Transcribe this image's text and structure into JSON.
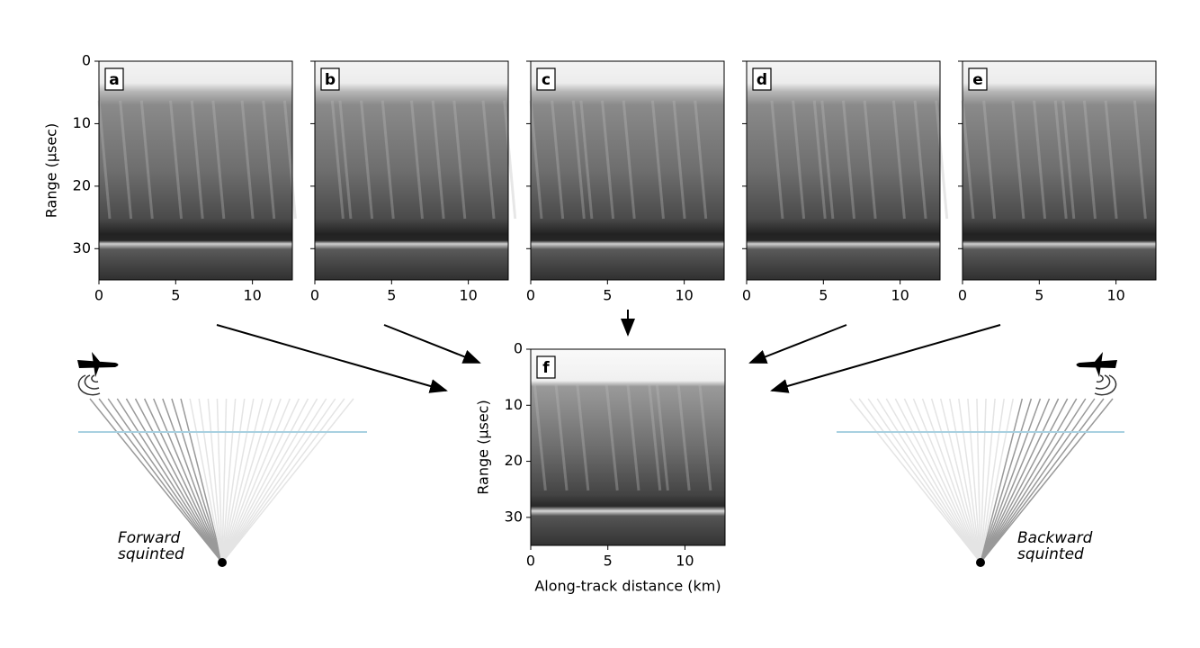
{
  "panels": [
    {
      "label": "a",
      "xlim": [
        0,
        12.6
      ],
      "ylim": [
        35,
        0
      ],
      "xticks": [
        0,
        5,
        10
      ],
      "yticks": [
        0,
        10,
        20,
        30
      ],
      "yticklabels": true,
      "ylabel": "Range (μsec)"
    },
    {
      "label": "b",
      "xlim": [
        0,
        12.6
      ],
      "ylim": [
        35,
        0
      ],
      "xticks": [
        0,
        5,
        10
      ],
      "yticks": [
        0,
        10,
        20,
        30
      ],
      "yticklabels": false
    },
    {
      "label": "c",
      "xlim": [
        0,
        12.6
      ],
      "ylim": [
        35,
        0
      ],
      "xticks": [
        0,
        5,
        10
      ],
      "yticks": [
        0,
        10,
        20,
        30
      ],
      "yticklabels": false
    },
    {
      "label": "d",
      "xlim": [
        0,
        12.6
      ],
      "ylim": [
        35,
        0
      ],
      "xticks": [
        0,
        5,
        10
      ],
      "yticks": [
        0,
        10,
        20,
        30
      ],
      "yticklabels": false
    },
    {
      "label": "e",
      "xlim": [
        0,
        12.6
      ],
      "ylim": [
        35,
        0
      ],
      "xticks": [
        0,
        5,
        10
      ],
      "yticks": [
        0,
        10,
        20,
        30
      ],
      "yticklabels": false
    },
    {
      "label": "f",
      "xlim": [
        0,
        12.6
      ],
      "ylim": [
        35,
        0
      ],
      "xticks": [
        0,
        5,
        10
      ],
      "yticks": [
        0,
        10,
        20,
        30
      ],
      "yticklabels": true,
      "ylabel": "Range (μsec)",
      "xlabel": "Along-track distance (km)"
    }
  ],
  "annotations": {
    "forward": [
      "Forward",
      "squinted"
    ],
    "backward": [
      "Backward",
      "squinted"
    ]
  }
}
